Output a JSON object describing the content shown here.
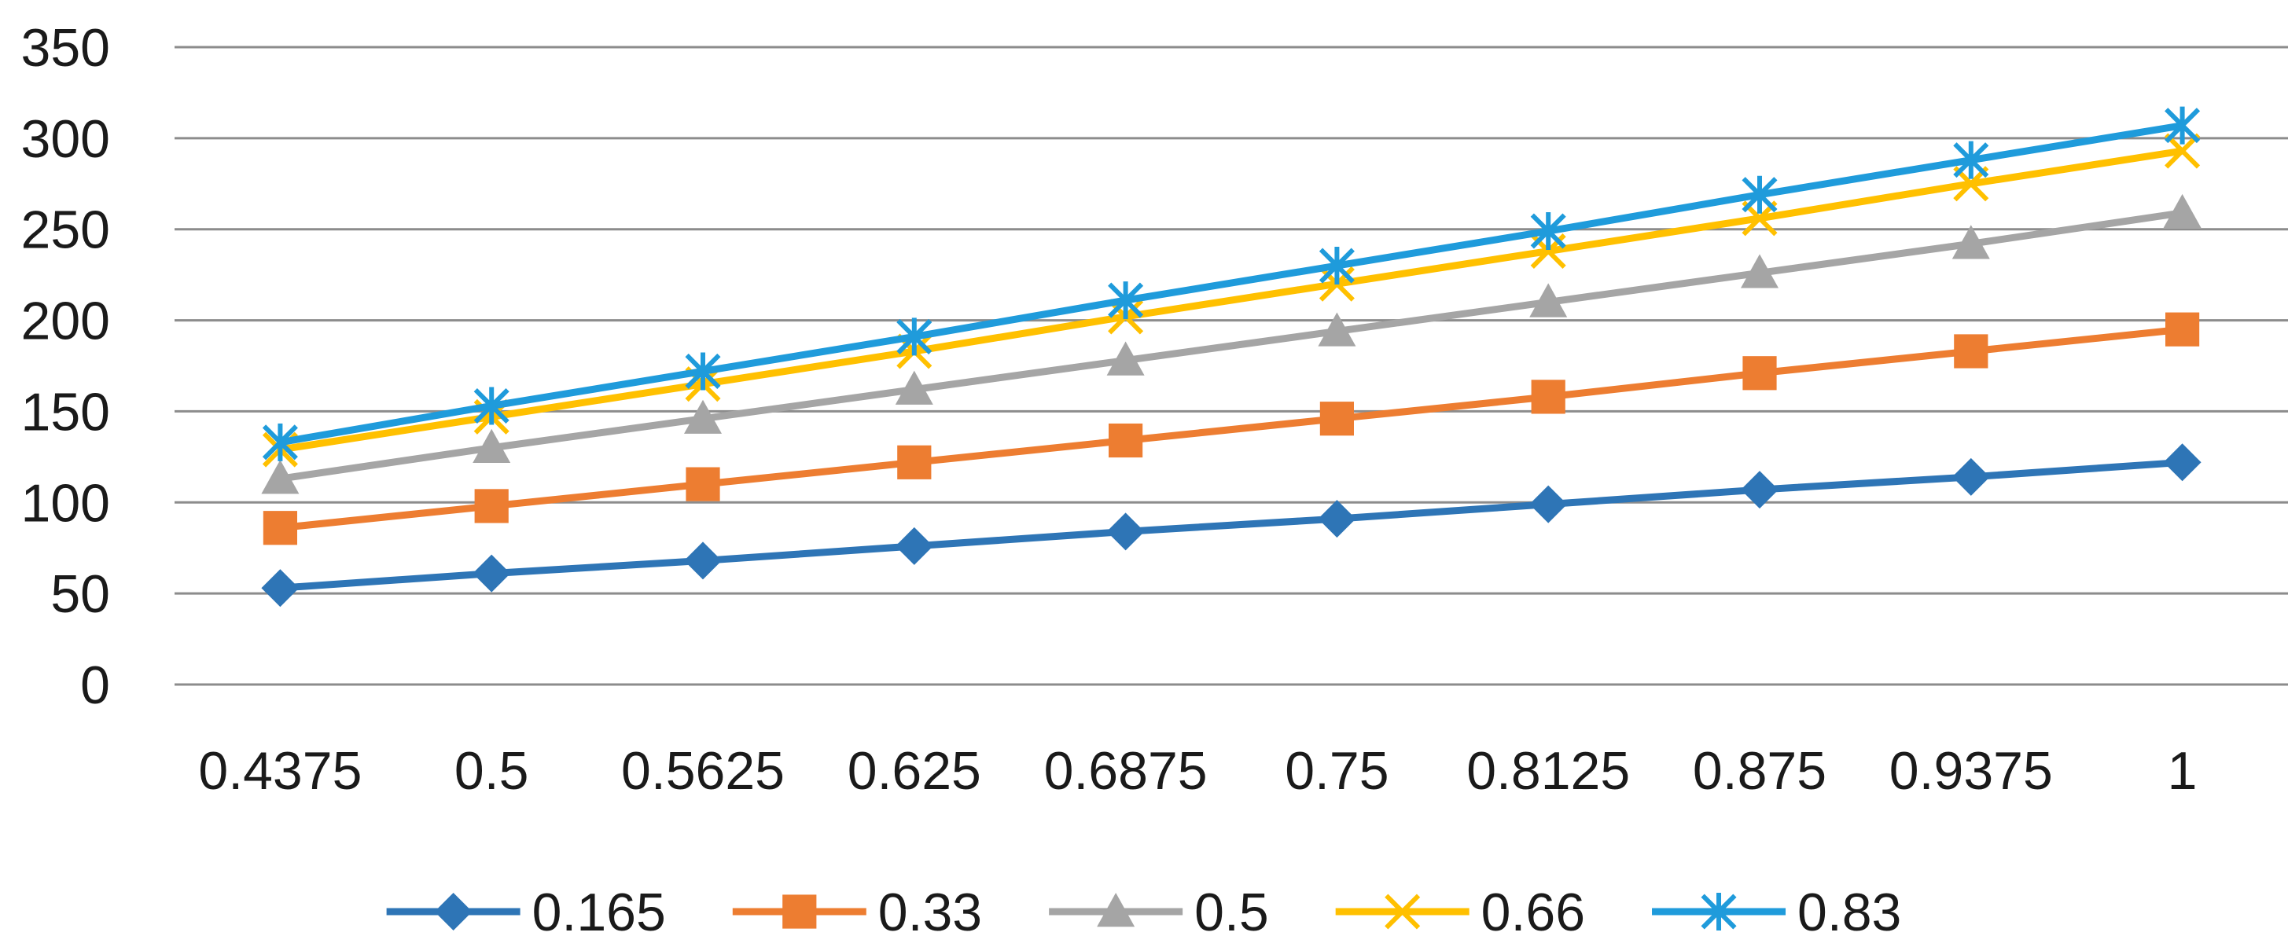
{
  "chart_data": {
    "type": "line",
    "title": "",
    "xlabel": "",
    "ylabel": "",
    "categories": [
      "0.4375",
      "0.5",
      "0.5625",
      "0.625",
      "0.6875",
      "0.75",
      "0.8125",
      "0.875",
      "0.9375",
      "1"
    ],
    "ylim": [
      0,
      350
    ],
    "yticks": [
      "0",
      "50",
      "100",
      "150",
      "200",
      "250",
      "300",
      "350"
    ],
    "grid": true,
    "legend_position": "bottom",
    "series": [
      {
        "name": "0.165",
        "color": "#2E75B6",
        "marker": "diamond",
        "values": [
          53,
          61,
          68,
          76,
          84,
          91,
          99,
          107,
          114,
          122
        ]
      },
      {
        "name": "0.33",
        "color": "#ED7D31",
        "marker": "square",
        "values": [
          86,
          98,
          110,
          122,
          134,
          146,
          158,
          171,
          183,
          195
        ]
      },
      {
        "name": "0.5",
        "color": "#A5A5A5",
        "marker": "triangle",
        "values": [
          113,
          130,
          146,
          162,
          178,
          194,
          210,
          226,
          242,
          259
        ]
      },
      {
        "name": "0.66",
        "color": "#FFC000",
        "marker": "x",
        "values": [
          129,
          147,
          165,
          183,
          202,
          220,
          238,
          256,
          275,
          293
        ]
      },
      {
        "name": "0.83",
        "color": "#1F9BDB",
        "marker": "star",
        "values": [
          133,
          153,
          172,
          191,
          211,
          230,
          249,
          269,
          288,
          307
        ]
      }
    ]
  }
}
